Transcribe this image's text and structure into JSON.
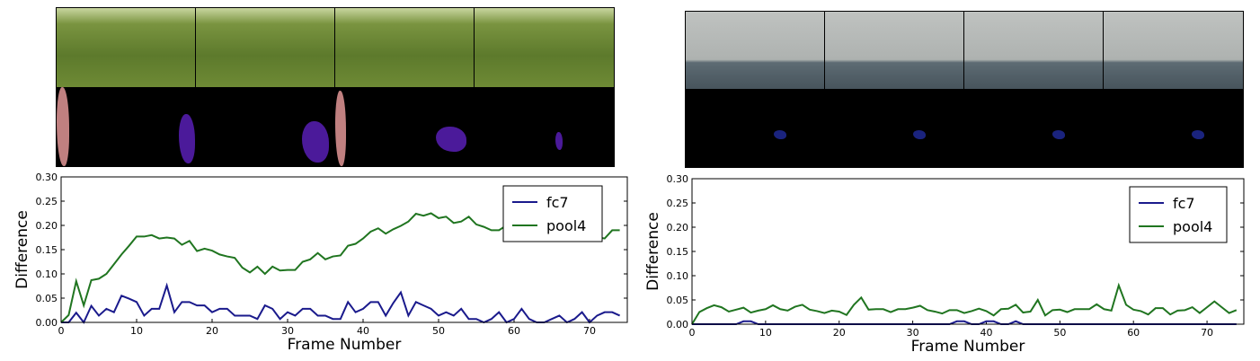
{
  "figures": [
    {
      "strip": {
        "frames": 4,
        "scene": "dog-park",
        "mask_colors": [
          "#c08080",
          "#4b1a9a"
        ]
      }
    },
    {
      "strip": {
        "frames": 4,
        "scene": "sea-boat",
        "mask_colors": [
          "#1a237e"
        ]
      }
    }
  ],
  "chart_data": [
    {
      "type": "line",
      "xlabel": "Frame Number",
      "ylabel": "Difference",
      "xlim": [
        0,
        75
      ],
      "ylim": [
        0,
        0.3
      ],
      "xticks": [
        "0",
        "10",
        "20",
        "30",
        "40",
        "50",
        "60",
        "70"
      ],
      "yticks": [
        "0.00",
        "0.05",
        "0.10",
        "0.15",
        "0.20",
        "0.25",
        "0.30"
      ],
      "legend": "top-right",
      "grid": false,
      "series": [
        {
          "name": "fc7",
          "color": "#1a1a8c",
          "values": [
            0,
            0,
            0.02,
            0,
            0.034,
            0.014,
            0.028,
            0.021,
            0.055,
            0.049,
            0.042,
            0.014,
            0.028,
            0.028,
            0.076,
            0.021,
            0.042,
            0.042,
            0.035,
            0.035,
            0.021,
            0.028,
            0.028,
            0.014,
            0.014,
            0.014,
            0.007,
            0.035,
            0.028,
            0.007,
            0.021,
            0.014,
            0.028,
            0.028,
            0.014,
            0.014,
            0.007,
            0.007,
            0.042,
            0.021,
            0.028,
            0.042,
            0.042,
            0.014,
            0.04,
            0.062,
            0.014,
            0.042,
            0.035,
            0.028,
            0.014,
            0.021,
            0.014,
            0.028,
            0.007,
            0.007,
            0,
            0.007,
            0.021,
            0,
            0.007,
            0.028,
            0.007,
            0,
            0,
            0.007,
            0.014,
            0,
            0.007,
            0.021,
            0,
            0.014,
            0.021,
            0.021,
            0.014
          ]
        },
        {
          "name": "pool4",
          "color": "#207520",
          "values": [
            0,
            0.015,
            0.085,
            0.035,
            0.087,
            0.09,
            0.1,
            0.12,
            0.14,
            0.158,
            0.177,
            0.177,
            0.18,
            0.173,
            0.175,
            0.173,
            0.16,
            0.168,
            0.147,
            0.152,
            0.148,
            0.14,
            0.136,
            0.133,
            0.113,
            0.103,
            0.115,
            0.1,
            0.115,
            0.107,
            0.108,
            0.108,
            0.125,
            0.13,
            0.143,
            0.13,
            0.136,
            0.138,
            0.158,
            0.162,
            0.173,
            0.187,
            0.194,
            0.183,
            0.192,
            0.199,
            0.208,
            0.224,
            0.22,
            0.225,
            0.215,
            0.218,
            0.205,
            0.208,
            0.218,
            0.202,
            0.197,
            0.19,
            0.19,
            0.2,
            0.178,
            0.18,
            0.185,
            0.19,
            0.185,
            0.19,
            0.19,
            0.19,
            0.185,
            0.185,
            0.178,
            0.176,
            0.173,
            0.19,
            0.19
          ]
        }
      ]
    },
    {
      "type": "line",
      "xlabel": "Frame Number",
      "ylabel": "Difference",
      "xlim": [
        0,
        75
      ],
      "ylim": [
        0,
        0.3
      ],
      "xticks": [
        "0",
        "10",
        "20",
        "30",
        "40",
        "50",
        "60",
        "70"
      ],
      "yticks": [
        "0.00",
        "0.05",
        "0.10",
        "0.15",
        "0.20",
        "0.25",
        "0.30"
      ],
      "legend": "top-right",
      "grid": false,
      "series": [
        {
          "name": "fc7",
          "color": "#1a1a8c",
          "values": [
            0,
            0,
            0,
            0,
            0,
            0,
            0,
            0.006,
            0.006,
            0,
            0,
            0,
            0,
            0,
            0,
            0,
            0,
            0,
            0,
            0,
            0,
            0,
            0,
            0,
            0,
            0,
            0,
            0,
            0,
            0,
            0,
            0,
            0,
            0,
            0,
            0,
            0.006,
            0.006,
            0,
            0,
            0.006,
            0.006,
            0,
            0,
            0.006,
            0,
            0,
            0,
            0,
            0,
            0,
            0,
            0,
            0,
            0,
            0,
            0,
            0,
            0,
            0,
            0,
            0,
            0,
            0,
            0,
            0,
            0,
            0,
            0,
            0,
            0,
            0,
            0,
            0,
            0
          ]
        },
        {
          "name": "pool4",
          "color": "#207520",
          "values": [
            0,
            0.025,
            0.033,
            0.039,
            0.035,
            0.026,
            0.03,
            0.034,
            0.024,
            0.028,
            0.031,
            0.039,
            0.031,
            0.028,
            0.036,
            0.04,
            0.03,
            0.027,
            0.023,
            0.028,
            0.026,
            0.019,
            0.04,
            0.055,
            0.03,
            0.031,
            0.031,
            0.025,
            0.031,
            0.031,
            0.034,
            0.038,
            0.029,
            0.026,
            0.022,
            0.029,
            0.029,
            0.023,
            0.027,
            0.032,
            0.027,
            0.018,
            0.031,
            0.032,
            0.04,
            0.024,
            0.026,
            0.05,
            0.018,
            0.029,
            0.03,
            0.025,
            0.031,
            0.031,
            0.031,
            0.041,
            0.031,
            0.028,
            0.08,
            0.04,
            0.03,
            0.027,
            0.02,
            0.033,
            0.033,
            0.02,
            0.028,
            0.029,
            0.035,
            0.023,
            0.035,
            0.047,
            0.035,
            0.023,
            0.029
          ]
        }
      ]
    }
  ]
}
